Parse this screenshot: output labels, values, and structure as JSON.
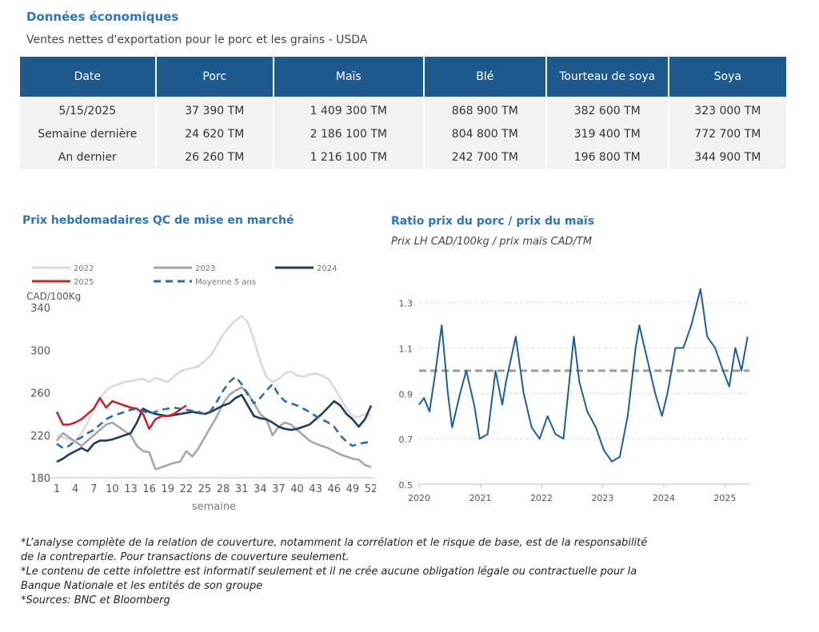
{
  "header": {
    "title": "Données économiques",
    "subtitle": "Ventes nettes d'exportation pour le porc et les grains - USDA"
  },
  "table": {
    "columns": [
      "Date",
      "Porc",
      "Maïs",
      "Blé",
      "Tourteau de soya",
      "Soya"
    ],
    "rows": [
      [
        "5/15/2025",
        "37 390 TM",
        "1 409 300 TM",
        "868 900 TM",
        "382 600 TM",
        "323 000 TM"
      ],
      [
        "Semaine dernière",
        "24 620 TM",
        "2 186 100 TM",
        "804 800 TM",
        "319 400 TM",
        "772 700 TM"
      ],
      [
        "An dernier",
        "26 260 TM",
        "1 216 100 TM",
        "242 700 TM",
        "196 800 TM",
        "344 900 TM"
      ]
    ]
  },
  "chart_data": [
    {
      "type": "line",
      "title": "Prix hebdomadaires QC de mise en marché",
      "y_label": "CAD/100Kg",
      "x_label": "semaine",
      "x": [
        1,
        2,
        3,
        4,
        5,
        6,
        7,
        8,
        9,
        10,
        11,
        12,
        13,
        14,
        15,
        16,
        17,
        18,
        19,
        20,
        21,
        22,
        23,
        24,
        25,
        26,
        27,
        28,
        29,
        30,
        31,
        32,
        33,
        34,
        35,
        36,
        37,
        38,
        39,
        40,
        41,
        42,
        43,
        44,
        45,
        46,
        47,
        48,
        49,
        50,
        51,
        52
      ],
      "xlim": [
        1,
        52
      ],
      "xticks": [
        1,
        4,
        7,
        10,
        13,
        16,
        19,
        22,
        25,
        28,
        31,
        34,
        37,
        40,
        43,
        46,
        49,
        52
      ],
      "ylim": [
        180,
        340
      ],
      "yticks": [
        180,
        220,
        260,
        300,
        340
      ],
      "grid": false,
      "legend": "top",
      "series": [
        {
          "name": "2022",
          "color": "#d9d9d9",
          "values": [
            220,
            218,
            216,
            215,
            222,
            232,
            245,
            255,
            262,
            266,
            268,
            270,
            271,
            272,
            273,
            270,
            274,
            272,
            270,
            275,
            280,
            282,
            283,
            285,
            290,
            295,
            305,
            315,
            322,
            328,
            332,
            326,
            310,
            290,
            275,
            270,
            273,
            278,
            280,
            276,
            275,
            277,
            278,
            276,
            273,
            265,
            255,
            245,
            238,
            237,
            240,
            238
          ]
        },
        {
          "name": "2023",
          "color": "#a6a6a6",
          "values": [
            215,
            222,
            218,
            214,
            210,
            215,
            220,
            225,
            230,
            232,
            228,
            224,
            220,
            210,
            205,
            204,
            188,
            190,
            192,
            194,
            195,
            205,
            200,
            208,
            218,
            228,
            238,
            250,
            258,
            262,
            265,
            260,
            250,
            240,
            235,
            220,
            228,
            232,
            230,
            225,
            220,
            215,
            212,
            210,
            208,
            205,
            202,
            200,
            198,
            197,
            192,
            190
          ]
        },
        {
          "name": "2024",
          "color": "#1f3a5a",
          "values": [
            195,
            198,
            202,
            205,
            208,
            205,
            212,
            215,
            215,
            216,
            218,
            220,
            222,
            232,
            245,
            242,
            240,
            239,
            238,
            239,
            240,
            241,
            242,
            241,
            240,
            242,
            245,
            248,
            250,
            255,
            258,
            248,
            238,
            236,
            235,
            232,
            228,
            226,
            225,
            226,
            228,
            230,
            235,
            240,
            246,
            252,
            248,
            240,
            235,
            228,
            235,
            248
          ]
        },
        {
          "name": "2025",
          "color": "#c0282d",
          "values": [
            242,
            230,
            230,
            232,
            235,
            240,
            245,
            255,
            246,
            252,
            250,
            248,
            246,
            245,
            240,
            226,
            235,
            238,
            238,
            240,
            244,
            248,
            null,
            null,
            null,
            null,
            null,
            null,
            null,
            null,
            null,
            null,
            null,
            null,
            null,
            null,
            null,
            null,
            null,
            null,
            null,
            null,
            null,
            null,
            null,
            null,
            null,
            null,
            null,
            null,
            null,
            null
          ]
        },
        {
          "name": "Moyenne 5 ans",
          "color": "#2e6b9e",
          "dashed": true,
          "values": [
            212,
            208,
            210,
            215,
            218,
            222,
            225,
            230,
            235,
            238,
            240,
            242,
            244,
            245,
            243,
            240,
            242,
            244,
            245,
            246,
            245,
            244,
            243,
            242,
            240,
            243,
            252,
            262,
            270,
            275,
            268,
            258,
            250,
            255,
            262,
            268,
            258,
            252,
            250,
            248,
            245,
            242,
            238,
            235,
            232,
            228,
            220,
            214,
            210,
            212,
            213,
            214
          ]
        }
      ]
    },
    {
      "type": "line",
      "title": "Ratio prix du porc / prix du maïs",
      "subtitle": "Prix LH CAD/100kg / prix maïs CAD/TM",
      "x": [
        2020.0,
        2020.08,
        2020.17,
        2020.27,
        2020.37,
        2020.47,
        2020.54,
        2020.67,
        2020.77,
        2020.9,
        2020.99,
        2021.12,
        2021.25,
        2021.36,
        2021.42,
        2021.58,
        2021.71,
        2021.84,
        2021.97,
        2022.1,
        2022.23,
        2022.36,
        2022.53,
        2022.62,
        2022.75,
        2022.89,
        2023.02,
        2023.15,
        2023.28,
        2023.41,
        2023.54,
        2023.6,
        2023.73,
        2023.86,
        2023.97,
        2024.06,
        2024.19,
        2024.32,
        2024.45,
        2024.6,
        2024.71,
        2024.84,
        2024.97,
        2025.07,
        2025.17,
        2025.27,
        2025.37
      ],
      "xlim": [
        2020,
        2025.4
      ],
      "xticks": [
        2020,
        2021,
        2022,
        2023,
        2024,
        2025
      ],
      "ylim": [
        0.5,
        1.38
      ],
      "yticks": [
        0.5,
        0.7,
        0.9,
        1.1,
        1.3
      ],
      "grid": true,
      "reference_line": 1,
      "reference_color": "#999999",
      "series": [
        {
          "color": "#1f5f99",
          "values": [
            0.85,
            0.88,
            0.82,
            1.0,
            1.2,
            0.9,
            0.75,
            0.9,
            1.0,
            0.85,
            0.7,
            0.72,
            1.0,
            0.85,
            0.95,
            1.15,
            0.9,
            0.75,
            0.7,
            0.8,
            0.72,
            0.7,
            1.15,
            0.95,
            0.82,
            0.75,
            0.65,
            0.6,
            0.62,
            0.8,
            1.1,
            1.2,
            1.05,
            0.9,
            0.8,
            0.9,
            1.1,
            1.1,
            1.2,
            1.36,
            1.15,
            1.1,
            1.0,
            0.93,
            1.1,
            1.0,
            1.15
          ]
        }
      ]
    }
  ],
  "footnotes": [
    "*L’analyse complète de la relation de couverture, notamment la corrélation et le risque de base, est de la responsabilité de la contrepartie. Pour transactions de couverture seulement.",
    "*Le contenu de cette infolettre est informatif seulement et il ne crée aucune obligation légale ou contractuelle pour la Banque Nationale et les entités de son groupe",
    "*Sources: BNC et Bloomberg"
  ]
}
